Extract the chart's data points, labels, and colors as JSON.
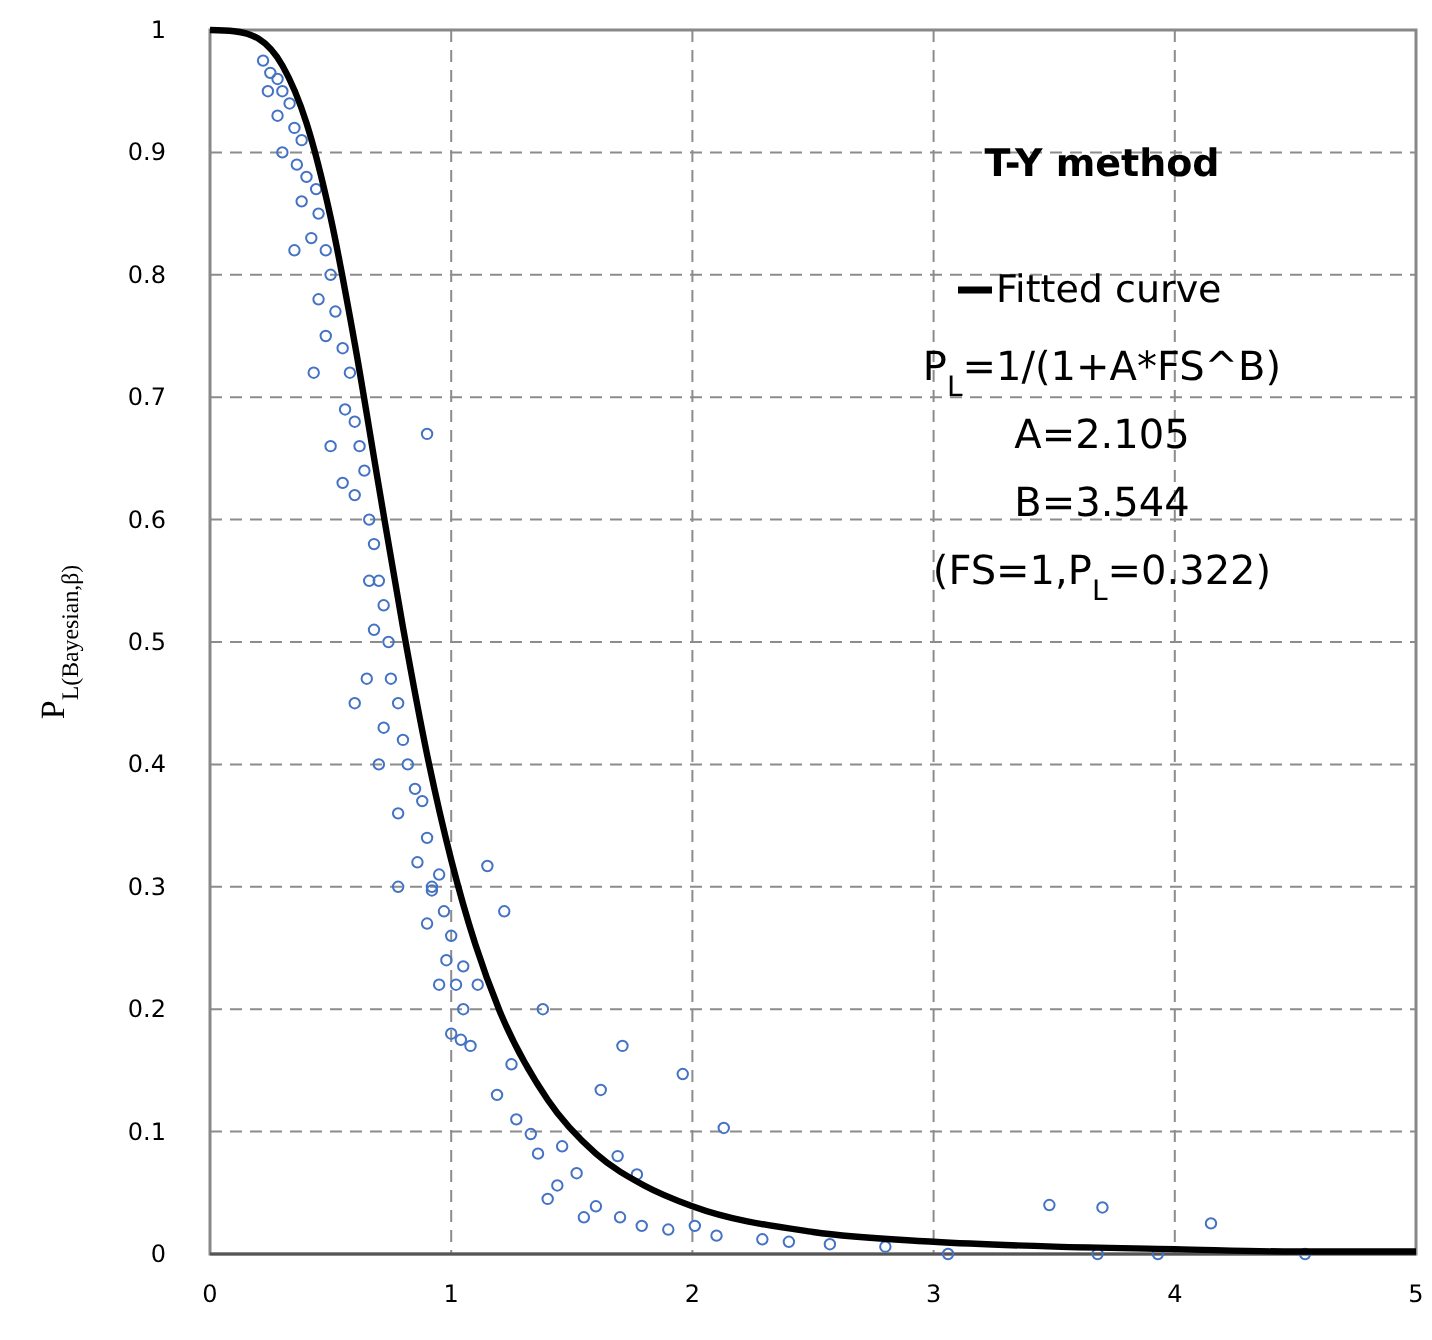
{
  "chart_data": {
    "type": "scatter",
    "title": "T-Y method",
    "ylabel": "P$_{L(Bayesian,β)}$",
    "xlim": [
      0,
      5
    ],
    "ylim": [
      0,
      1
    ],
    "xticks": [
      0,
      1,
      2,
      3,
      4,
      5
    ],
    "yticks": [
      0,
      0.1,
      0.2,
      0.3,
      0.4,
      0.5,
      0.6,
      0.7,
      0.8,
      0.9,
      1
    ],
    "grid": true,
    "legend": "top right",
    "annotations": [
      "P$_{L}$=1/(1+A*FS^B)",
      "A=2.105",
      "B=3.544",
      "(FS=1,P$_{L}$=0.322)"
    ],
    "series": [
      {
        "marker": "circle",
        "color": "#4472c4",
        "x": [
          0.22,
          0.25,
          0.28,
          0.24,
          0.3,
          0.33,
          0.28,
          0.35,
          0.38,
          0.3,
          0.36,
          0.4,
          0.44,
          0.38,
          0.45,
          0.42,
          0.48,
          0.5,
          0.45,
          0.52,
          0.35,
          0.48,
          0.55,
          0.43,
          0.58,
          0.56,
          0.6,
          0.5,
          0.62,
          0.64,
          0.6,
          0.66,
          0.68,
          0.55,
          0.66,
          0.7,
          0.72,
          0.68,
          0.74,
          0.9,
          0.6,
          0.65,
          0.75,
          0.78,
          0.72,
          0.8,
          0.7,
          0.82,
          0.85,
          0.78,
          0.88,
          0.9,
          0.86,
          0.92,
          0.95,
          0.78,
          0.97,
          0.9,
          1.0,
          0.98,
          1.02,
          0.95,
          1.05,
          1.0,
          1.08,
          1.15,
          1.22,
          1.38,
          1.71,
          1.96,
          2.13,
          1.62,
          0.92,
          1.04,
          1.33,
          1.46,
          1.52,
          1.44,
          1.77,
          1.69,
          1.6,
          1.79,
          2.01,
          2.29,
          2.57,
          1.19,
          1.27,
          1.36,
          1.05,
          1.11,
          1.25,
          1.4,
          1.55,
          1.7,
          1.9,
          2.1,
          2.4,
          2.8,
          3.48,
          3.7,
          4.15,
          4.54,
          3.68,
          3.93,
          3.06
        ],
        "values": [
          0.975,
          0.965,
          0.96,
          0.95,
          0.95,
          0.94,
          0.93,
          0.92,
          0.91,
          0.9,
          0.89,
          0.88,
          0.87,
          0.86,
          0.85,
          0.83,
          0.82,
          0.8,
          0.78,
          0.77,
          0.82,
          0.75,
          0.74,
          0.72,
          0.72,
          0.69,
          0.68,
          0.66,
          0.66,
          0.64,
          0.62,
          0.6,
          0.58,
          0.63,
          0.55,
          0.55,
          0.53,
          0.51,
          0.5,
          0.67,
          0.45,
          0.47,
          0.47,
          0.45,
          0.43,
          0.42,
          0.4,
          0.4,
          0.38,
          0.36,
          0.37,
          0.34,
          0.32,
          0.3,
          0.31,
          0.3,
          0.28,
          0.27,
          0.26,
          0.24,
          0.22,
          0.22,
          0.2,
          0.18,
          0.17,
          0.317,
          0.28,
          0.2,
          0.17,
          0.147,
          0.103,
          0.134,
          0.297,
          0.175,
          0.098,
          0.088,
          0.066,
          0.056,
          0.065,
          0.08,
          0.039,
          0.023,
          0.023,
          0.012,
          0.008,
          0.13,
          0.11,
          0.082,
          0.235,
          0.22,
          0.155,
          0.045,
          0.03,
          0.03,
          0.02,
          0.015,
          0.01,
          0.006,
          0.04,
          0.038,
          0.025,
          0.0,
          0.0,
          0.0,
          0.0
        ]
      },
      {
        "type": "line",
        "marker": "none",
        "name": "Fitted curve",
        "color": "#000000",
        "x": [
          0,
          0.1,
          0.2,
          0.3,
          0.4,
          0.5,
          0.6,
          0.7,
          0.8,
          0.9,
          1.0,
          1.1,
          1.2,
          1.4,
          1.6,
          1.8,
          2.0,
          2.5,
          3.0,
          3.5,
          4.0,
          4.5,
          5.0
        ],
        "values": [
          1,
          0.999,
          0.993,
          0.971,
          0.924,
          0.847,
          0.744,
          0.627,
          0.512,
          0.408,
          0.322,
          0.253,
          0.199,
          0.126,
          0.082,
          0.056,
          0.039,
          0.018,
          0.01,
          0.006,
          0.004,
          0.002,
          0.002
        ]
      }
    ]
  }
}
